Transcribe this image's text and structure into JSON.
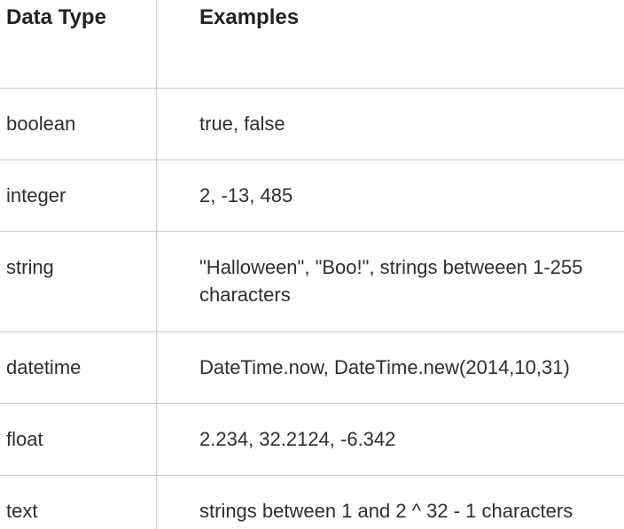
{
  "table": {
    "headers": [
      "Data Type",
      "Examples"
    ],
    "rows": [
      [
        "boolean",
        "true, false"
      ],
      [
        "integer",
        "2, -13, 485"
      ],
      [
        "string",
        "\"Halloween\", \"Boo!\", strings betweeen 1-255 characters"
      ],
      [
        "datetime",
        "DateTime.now, DateTime.new(2014,10,31)"
      ],
      [
        "float",
        "2.234, 32.2124, -6.342"
      ],
      [
        "text",
        "strings between 1 and 2 ^ 32 - 1 characters"
      ]
    ]
  }
}
